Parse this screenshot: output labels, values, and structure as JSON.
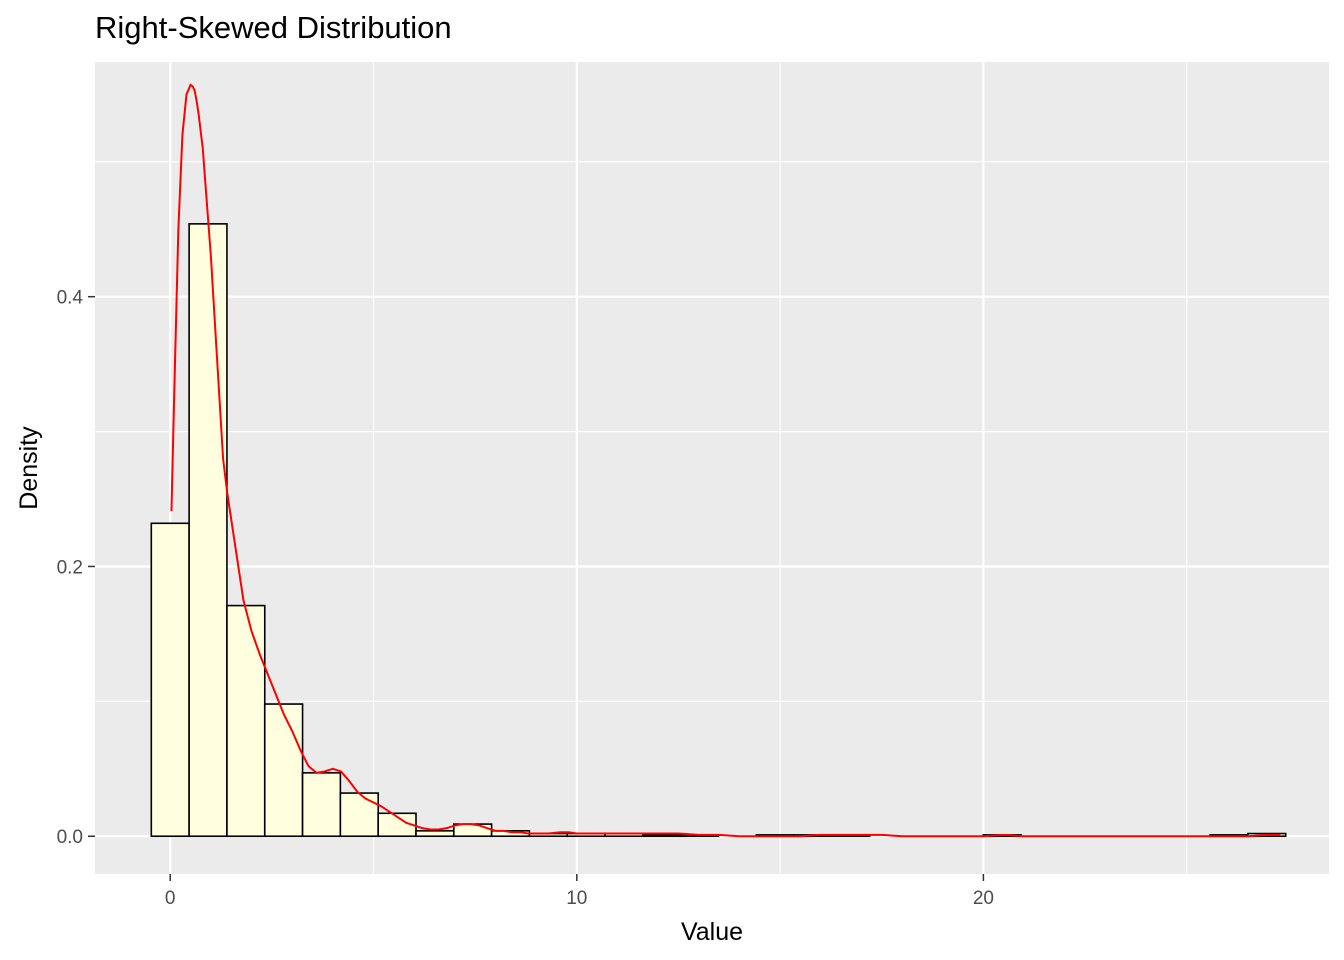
{
  "chart_data": {
    "type": "bar",
    "title": "Right-Skewed Distribution",
    "xlabel": "Value",
    "ylabel": "Density",
    "xlim": [
      -1.85,
      28.5
    ],
    "ylim": [
      -0.028,
      0.574
    ],
    "x_ticks": [
      0,
      10,
      20
    ],
    "x_tick_labels": [
      "0",
      "10",
      "20"
    ],
    "y_ticks": [
      0.0,
      0.2,
      0.4
    ],
    "y_tick_labels": [
      "0.0",
      "0.2",
      "0.4"
    ],
    "grid": true,
    "histogram": {
      "bin_width": 0.93,
      "bin_centers": [
        0.0,
        0.93,
        1.86,
        2.79,
        3.72,
        4.65,
        5.58,
        6.51,
        7.44,
        8.37,
        9.3,
        10.23,
        11.16,
        12.09,
        13.02,
        13.95,
        14.88,
        15.81,
        16.74,
        17.67,
        18.6,
        19.53,
        20.46,
        21.39,
        22.32,
        23.25,
        24.18,
        25.11,
        26.04,
        26.97
      ],
      "densities": [
        0.232,
        0.454,
        0.171,
        0.098,
        0.047,
        0.032,
        0.017,
        0.004,
        0.009,
        0.004,
        0.002,
        0.002,
        0.002,
        0.001,
        0.001,
        0.0,
        0.001,
        0.001,
        0.001,
        0.0,
        0.0,
        0.0,
        0.001,
        0.0,
        0.0,
        0.0,
        0.0,
        0.0,
        0.001,
        0.002
      ],
      "fill": "#ffffe0",
      "stroke": "#000000"
    },
    "density_curve": {
      "color": "#ff0000",
      "x": [
        0.03,
        0.1,
        0.2,
        0.3,
        0.4,
        0.5,
        0.55,
        0.6,
        0.65,
        0.7,
        0.8,
        0.9,
        1.0,
        1.1,
        1.2,
        1.3,
        1.4,
        1.5,
        1.6,
        1.7,
        1.8,
        2.0,
        2.2,
        2.4,
        2.6,
        2.8,
        3.0,
        3.2,
        3.4,
        3.6,
        3.8,
        4.0,
        4.2,
        4.4,
        4.6,
        4.8,
        5.0,
        5.2,
        5.4,
        5.6,
        5.8,
        6.0,
        6.2,
        6.4,
        6.6,
        6.8,
        7.0,
        7.2,
        7.4,
        7.6,
        7.8,
        8.0,
        8.2,
        8.4,
        8.6,
        8.8,
        9.0,
        9.3,
        9.6,
        9.8,
        10.0,
        10.3,
        10.6,
        11.0,
        11.5,
        12.0,
        12.5,
        13.0,
        13.5,
        14.0,
        14.5,
        15.0,
        15.5,
        16.0,
        16.5,
        17.0,
        17.5,
        18.0,
        19.0,
        20.0,
        20.5,
        21.0,
        22.0,
        23.0,
        24.0,
        25.0,
        26.0,
        26.5,
        27.0,
        27.3
      ],
      "y": [
        0.241,
        0.33,
        0.45,
        0.52,
        0.55,
        0.557,
        0.556,
        0.553,
        0.545,
        0.535,
        0.51,
        0.47,
        0.43,
        0.38,
        0.33,
        0.28,
        0.255,
        0.235,
        0.215,
        0.195,
        0.175,
        0.152,
        0.135,
        0.12,
        0.105,
        0.09,
        0.078,
        0.064,
        0.052,
        0.047,
        0.048,
        0.05,
        0.048,
        0.041,
        0.033,
        0.028,
        0.025,
        0.022,
        0.018,
        0.014,
        0.01,
        0.008,
        0.006,
        0.005,
        0.005,
        0.006,
        0.008,
        0.009,
        0.009,
        0.008,
        0.006,
        0.004,
        0.004,
        0.003,
        0.003,
        0.002,
        0.002,
        0.002,
        0.003,
        0.003,
        0.002,
        0.002,
        0.002,
        0.002,
        0.002,
        0.002,
        0.002,
        0.001,
        0.001,
        0.0,
        0.0,
        0.0,
        0.0,
        0.001,
        0.001,
        0.001,
        0.001,
        0.0,
        0.0,
        0.0,
        0.001,
        0.0,
        0.0,
        0.0,
        0.0,
        0.0,
        0.0,
        0.0,
        0.001,
        0.001
      ]
    }
  }
}
